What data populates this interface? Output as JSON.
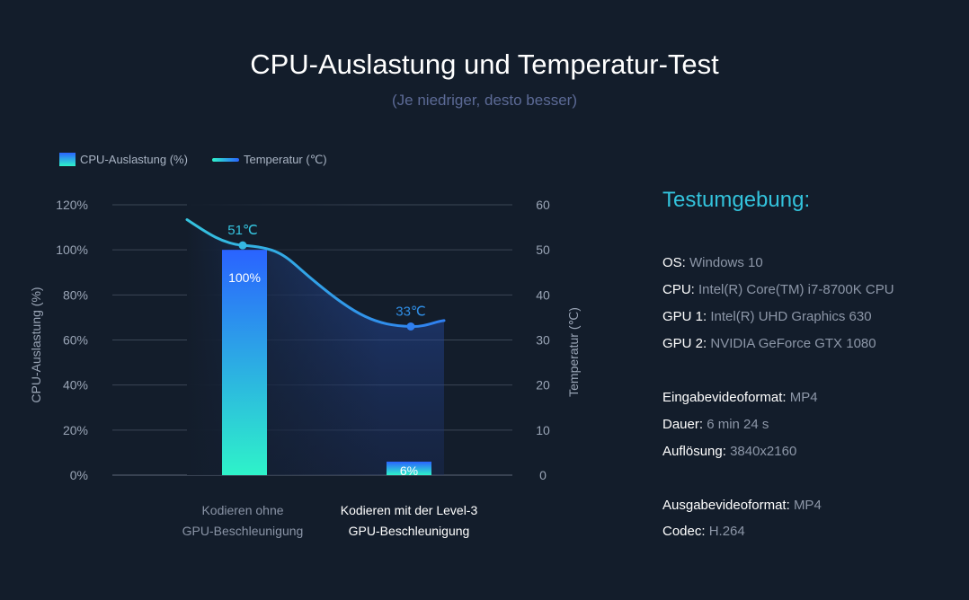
{
  "chart_data": {
    "type": "bar+line",
    "title": "CPU-Auslastung und Temperatur-Test",
    "subtitle": "(Je niedriger, desto besser)",
    "categories": [
      "Kodieren ohne GPU-Beschleunigung",
      "Kodieren mit der Level-3 GPU-Beschleunigung"
    ],
    "category_lines": [
      [
        "Kodieren ohne",
        "GPU-Beschleunigung"
      ],
      [
        "Kodieren mit der Level-3",
        "GPU-Beschleunigung"
      ]
    ],
    "series": [
      {
        "name": "CPU-Auslastung (%)",
        "type": "bar",
        "axis": "left",
        "values": [
          100,
          6
        ],
        "labels": [
          "100%",
          "6%"
        ]
      },
      {
        "name": "Temperatur (℃)",
        "type": "line",
        "axis": "right",
        "values": [
          51,
          33
        ],
        "labels": [
          "51℃",
          "33℃"
        ]
      }
    ],
    "y_left": {
      "label": "CPU-Auslastung (%)",
      "min": 0,
      "max": 120,
      "ticks": [
        "0%",
        "20%",
        "40%",
        "60%",
        "80%",
        "100%",
        "120%"
      ]
    },
    "y_right": {
      "label": "Temperatur (℃)",
      "min": 0,
      "max": 60,
      "ticks": [
        "0",
        "10",
        "20",
        "30",
        "40",
        "50",
        "60"
      ]
    },
    "legend": [
      "CPU-Auslastung (%)",
      "Temperatur (℃)"
    ],
    "legend_position": "top-left",
    "grid": true
  },
  "environment": {
    "title": "Testumgebung:",
    "groups": [
      [
        {
          "k": "OS:",
          "v": "Windows 10"
        },
        {
          "k": "CPU:",
          "v": "Intel(R) Core(TM) i7-8700K CPU"
        },
        {
          "k": "GPU 1:",
          "v": "Intel(R) UHD Graphics 630"
        },
        {
          "k": "GPU 2:",
          "v": "NVIDIA GeForce GTX 1080"
        }
      ],
      [
        {
          "k": "Eingabevideoformat:",
          "v": "MP4"
        },
        {
          "k": "Dauer:",
          "v": "6 min 24 s"
        },
        {
          "k": "Auflösung:",
          "v": "3840x2160"
        }
      ],
      [
        {
          "k": "Ausgabevideoformat:",
          "v": "MP4"
        },
        {
          "k": "Codec:",
          "v": "H.264"
        }
      ]
    ]
  },
  "colors": {
    "background": "#131d2b",
    "bar_top": "#2a63ff",
    "bar_bottom": "#2ef3c9",
    "line": "#2f8de4",
    "accent": "#33c3dc"
  }
}
